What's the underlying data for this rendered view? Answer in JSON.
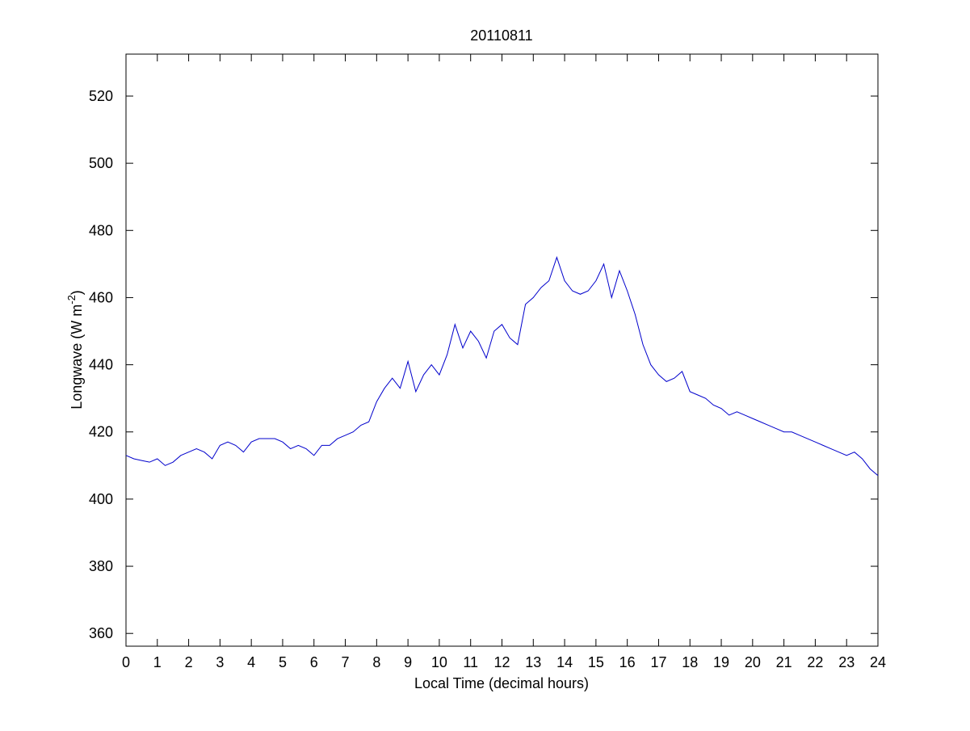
{
  "chart_data": {
    "type": "line",
    "title": "20110811",
    "xlabel": "Local Time (decimal hours)",
    "ylabel": [
      "Longwave (W m",
      "-2",
      ")"
    ],
    "x": [
      0,
      0.25,
      0.5,
      0.75,
      1,
      1.25,
      1.5,
      1.75,
      2,
      2.25,
      2.5,
      2.75,
      3,
      3.25,
      3.5,
      3.75,
      4,
      4.25,
      4.5,
      4.75,
      5,
      5.25,
      5.5,
      5.75,
      6,
      6.25,
      6.5,
      6.75,
      7,
      7.25,
      7.5,
      7.75,
      8,
      8.25,
      8.5,
      8.75,
      9,
      9.25,
      9.5,
      9.75,
      10,
      10.25,
      10.5,
      10.75,
      11,
      11.25,
      11.5,
      11.75,
      12,
      12.25,
      12.5,
      12.75,
      13,
      13.25,
      13.5,
      13.75,
      14,
      14.25,
      14.5,
      14.75,
      15,
      15.25,
      15.5,
      15.75,
      16,
      16.25,
      16.5,
      16.75,
      17,
      17.25,
      17.5,
      17.75,
      18,
      18.25,
      18.5,
      18.75,
      19,
      19.25,
      19.5,
      19.75,
      20,
      20.25,
      20.5,
      20.75,
      21,
      21.25,
      21.5,
      21.75,
      22,
      22.25,
      22.5,
      22.75,
      23,
      23.25,
      23.5,
      23.75,
      24
    ],
    "series": [
      {
        "color": "#0000cc",
        "values": [
          413,
          412,
          411.5,
          411,
          412,
          410,
          411,
          413,
          414,
          415,
          414,
          412,
          416,
          417,
          416,
          414,
          417,
          418,
          418,
          418,
          417,
          415,
          416,
          415,
          413,
          416,
          416,
          418,
          419,
          420,
          422,
          423,
          429,
          433,
          436,
          433,
          441,
          432,
          437,
          440,
          437,
          443,
          452,
          445,
          450,
          447,
          442,
          450,
          452,
          448,
          446,
          458,
          460,
          463,
          465,
          472,
          465,
          462,
          461,
          462,
          465,
          470,
          460,
          468,
          462,
          455,
          446,
          440,
          437,
          435,
          436,
          438,
          432,
          431,
          430,
          428,
          427,
          425,
          426,
          425,
          424,
          423,
          422,
          421,
          420,
          420,
          419,
          418,
          417,
          416,
          415,
          414,
          413,
          414,
          412,
          409,
          407
        ]
      }
    ],
    "xlim": [
      0,
      24
    ],
    "xticks": [
      0,
      1,
      2,
      3,
      4,
      5,
      6,
      7,
      8,
      9,
      10,
      11,
      12,
      13,
      14,
      15,
      16,
      17,
      18,
      19,
      20,
      21,
      22,
      23,
      24
    ],
    "ylim": [
      356.2,
      532.5
    ],
    "yticks": [
      360,
      380,
      400,
      420,
      440,
      460,
      480,
      500,
      520
    ]
  }
}
